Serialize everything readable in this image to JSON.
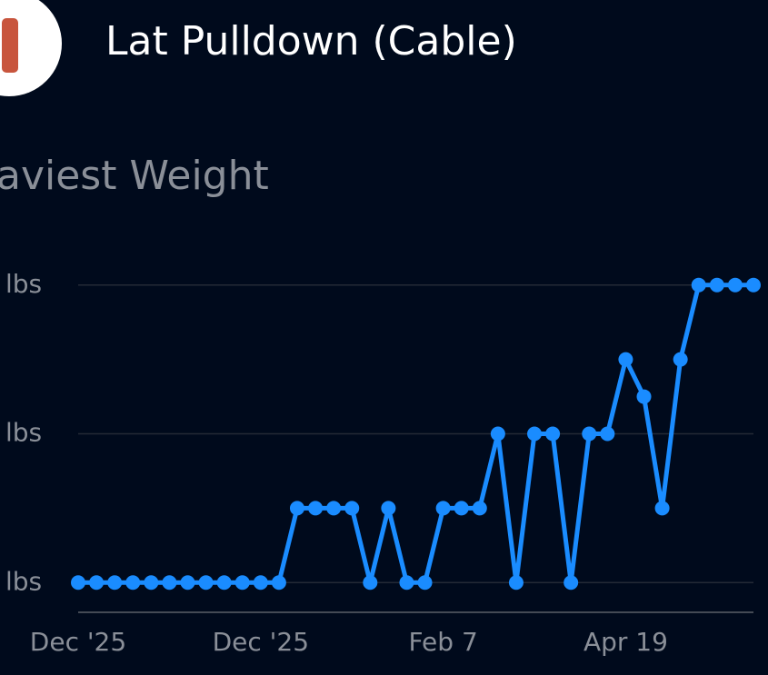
{
  "chart_data": {
    "type": "line",
    "title": "Lat Pulldown (Cable)",
    "subtitle": "aviest Weight",
    "categories": [
      "Dec '25",
      null,
      null,
      null,
      null,
      null,
      null,
      null,
      null,
      null,
      "Dec '25",
      null,
      null,
      null,
      null,
      null,
      null,
      null,
      null,
      null,
      "Feb 7",
      null,
      null,
      null,
      null,
      null,
      null,
      null,
      null,
      null,
      "Apr 19",
      null,
      null,
      null,
      null,
      null,
      null,
      null
    ],
    "series": [
      {
        "name": "Heaviest Weight",
        "color": "#1a8cff",
        "values": [
          100,
          100,
          100,
          100,
          100,
          100,
          100,
          100,
          100,
          100,
          100,
          100,
          110,
          110,
          110,
          110,
          100,
          110,
          100,
          100,
          110,
          110,
          110,
          120,
          100,
          120,
          120,
          100,
          120,
          120,
          130,
          125,
          110,
          130,
          140,
          140,
          140,
          140
        ]
      }
    ],
    "ylim": [
      96,
      144
    ],
    "yticks": [
      {
        "value": 100,
        "label": "lbs"
      },
      {
        "value": 120,
        "label": "lbs"
      },
      {
        "value": 140,
        "label": "lbs"
      }
    ],
    "grid": true
  }
}
